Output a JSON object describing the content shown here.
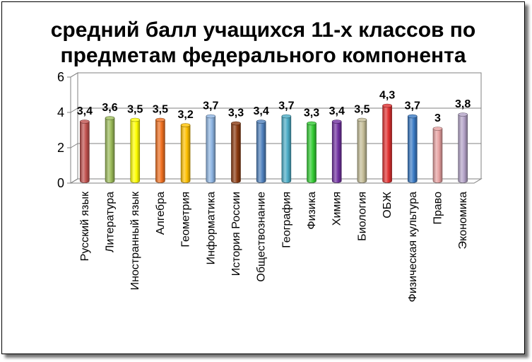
{
  "chart_data": {
    "type": "bar",
    "title_lines": [
      "средний балл учащихся 11-х классов по",
      "предметам федерального компонента"
    ],
    "categories": [
      "Русский язык",
      "Литература",
      "Иностранный язык",
      "Алгебра",
      "Геометрия",
      "Информатика",
      "История России",
      "Обществознание",
      "География",
      "Физика",
      "Химия",
      "Биология",
      "ОБЖ",
      "Физическая культура",
      "Право",
      "Экономика"
    ],
    "values": [
      3.4,
      3.6,
      3.5,
      3.5,
      3.2,
      3.7,
      3.3,
      3.4,
      3.7,
      3.3,
      3.4,
      3.5,
      4.3,
      3.7,
      3,
      3.8
    ],
    "data_labels": [
      "3,4",
      "3,6",
      "3,5",
      "3,5",
      "3,2",
      "3,7",
      "3,3",
      "3,4",
      "3,7",
      "3,3",
      "3,4",
      "3,5",
      "4,3",
      "3,7",
      "3",
      "3,8"
    ],
    "colors": [
      "#c0504d",
      "#9bbb59",
      "#ffff00",
      "#f07020",
      "#ffc000",
      "#8db4e2",
      "#8b3a10",
      "#4f81bd",
      "#4bacc6",
      "#33cc33",
      "#7030a0",
      "#c4bd97",
      "#e03030",
      "#3a7ac4",
      "#e6a0a0",
      "#b3a2c7"
    ],
    "yticks": [
      "0",
      "2",
      "4",
      "6"
    ],
    "ylim": [
      0,
      6
    ],
    "grid": true,
    "legend": "none"
  }
}
